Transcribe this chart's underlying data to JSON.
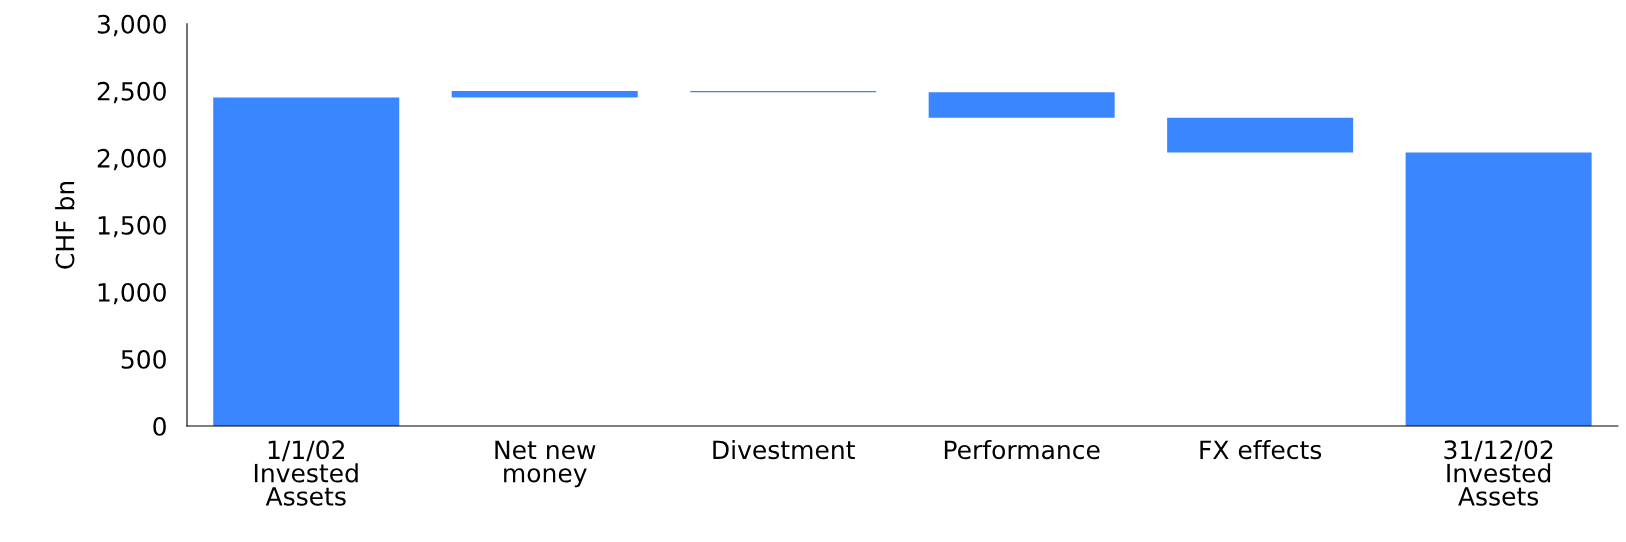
{
  "chart_data": {
    "type": "bar",
    "ylabel": "CHF bn",
    "categories": [
      "1/1/02\nInvested\nAssets",
      "Net new\nmoney",
      "Divestment",
      "Performance",
      "FX effects",
      "31/12/02\nInvested\nAssets"
    ],
    "values": [
      2450,
      50,
      -10,
      -190,
      -260,
      2040
    ],
    "base": [
      0,
      2450,
      2500,
      2490,
      2300,
      0
    ],
    "color": "#3a86ff",
    "ylim": [
      0,
      3000
    ],
    "yticks": [
      {
        "value": 0,
        "label": "0"
      },
      {
        "value": 500,
        "label": "500"
      },
      {
        "value": 1000,
        "label": "1,000"
      },
      {
        "value": 1500,
        "label": "1,500"
      },
      {
        "value": 2000,
        "label": "2,000"
      },
      {
        "value": 2500,
        "label": "2,500"
      },
      {
        "value": 3000,
        "label": "3,000"
      }
    ],
    "grid": false
  }
}
